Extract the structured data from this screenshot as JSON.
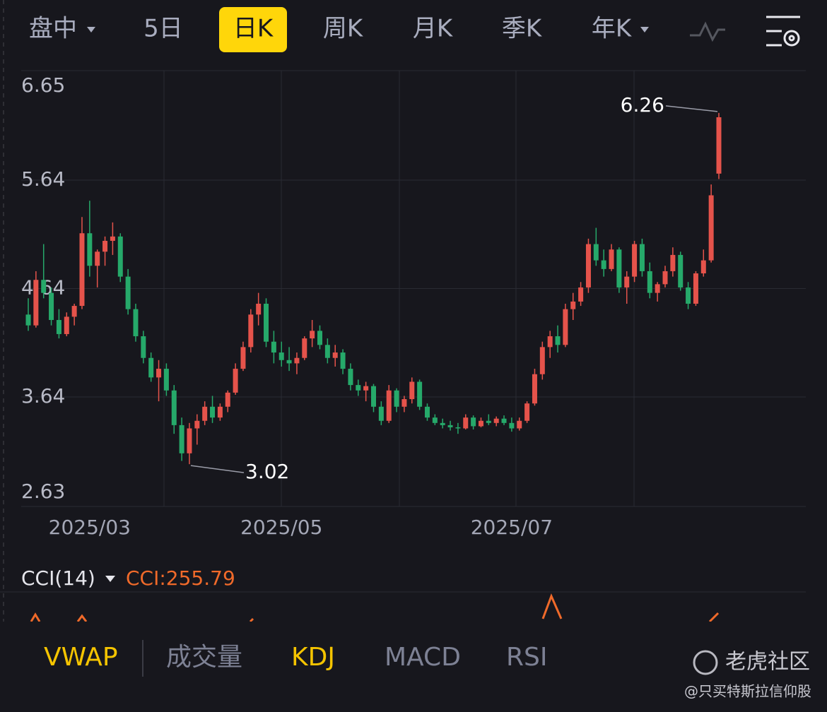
{
  "toolbar": {
    "tabs": [
      "盘中",
      "5日",
      "日K",
      "周K",
      "月K",
      "季K",
      "年K"
    ],
    "selected": 2
  },
  "chart_data": {
    "type": "candlestick",
    "categories": [
      null,
      null,
      null,
      null,
      null,
      null,
      null,
      null,
      "2025/03",
      null,
      null,
      null,
      null,
      null,
      null,
      null,
      null,
      null,
      null,
      null,
      null,
      null,
      null,
      null,
      null,
      null,
      null,
      null,
      null,
      null,
      null,
      null,
      null,
      "2025/05",
      null,
      null,
      null,
      null,
      null,
      null,
      null,
      null,
      null,
      null,
      null,
      null,
      null,
      null,
      null,
      null,
      null,
      null,
      null,
      null,
      null,
      null,
      null,
      null,
      null,
      null,
      null,
      null,
      null,
      "2025/07",
      null,
      null,
      null,
      null,
      null,
      null,
      null,
      null,
      null,
      null,
      null,
      null,
      null,
      null,
      null,
      null,
      null,
      null,
      null,
      null,
      null,
      null,
      null,
      null,
      null,
      null,
      null
    ],
    "open": [
      4.4,
      4.3,
      4.72,
      4.6,
      4.35,
      4.22,
      4.38,
      4.48,
      5.15,
      4.85,
      4.98,
      5.08,
      5.12,
      4.75,
      4.45,
      4.2,
      4.0,
      3.82,
      3.9,
      3.7,
      3.38,
      3.12,
      3.35,
      3.42,
      3.55,
      3.45,
      3.55,
      3.68,
      3.9,
      4.1,
      4.4,
      4.5,
      4.15,
      4.05,
      3.98,
      3.95,
      4.0,
      4.18,
      4.25,
      4.12,
      4.0,
      4.05,
      3.9,
      3.75,
      3.7,
      3.74,
      3.55,
      3.42,
      3.7,
      3.55,
      3.62,
      3.78,
      3.55,
      3.45,
      3.4,
      3.38,
      3.36,
      3.35,
      3.45,
      3.37,
      3.42,
      3.4,
      3.44,
      3.4,
      3.35,
      3.42,
      3.58,
      3.85,
      4.1,
      4.2,
      4.12,
      4.45,
      4.52,
      4.65,
      5.05,
      4.9,
      4.82,
      5.0,
      4.65,
      4.75,
      5.05,
      4.8,
      4.6,
      4.68,
      4.8,
      4.95,
      4.65,
      4.5,
      4.78,
      4.9,
      5.7
    ],
    "high": [
      4.55,
      4.8,
      5.05,
      4.65,
      4.45,
      4.42,
      4.5,
      5.3,
      5.45,
      5.0,
      5.12,
      5.25,
      5.15,
      4.82,
      4.5,
      4.25,
      4.05,
      3.98,
      3.95,
      3.75,
      3.45,
      3.4,
      3.48,
      3.6,
      3.65,
      3.58,
      3.7,
      3.95,
      4.15,
      4.45,
      4.6,
      4.55,
      4.25,
      4.15,
      4.1,
      4.05,
      4.2,
      4.35,
      4.3,
      4.18,
      4.12,
      4.08,
      3.95,
      3.8,
      3.78,
      3.76,
      3.6,
      3.75,
      3.72,
      3.65,
      3.82,
      3.8,
      3.58,
      3.48,
      3.44,
      3.42,
      3.4,
      3.48,
      3.47,
      3.45,
      3.48,
      3.46,
      3.47,
      3.45,
      3.45,
      3.6,
      3.9,
      4.15,
      4.25,
      4.3,
      4.5,
      4.6,
      4.7,
      5.1,
      5.2,
      5.0,
      5.05,
      5.02,
      4.8,
      5.08,
      5.1,
      4.88,
      4.7,
      4.85,
      5.02,
      4.98,
      4.7,
      4.8,
      5.0,
      5.6,
      6.26
    ],
    "low": [
      4.25,
      4.28,
      4.55,
      4.3,
      4.18,
      4.2,
      4.3,
      4.45,
      4.75,
      4.65,
      4.85,
      4.95,
      4.7,
      4.4,
      4.15,
      3.95,
      3.78,
      3.6,
      3.65,
      3.3,
      3.05,
      3.02,
      3.2,
      3.38,
      3.4,
      3.42,
      3.5,
      3.66,
      3.88,
      4.05,
      4.3,
      4.1,
      3.95,
      3.92,
      3.88,
      3.85,
      3.98,
      4.1,
      4.08,
      3.95,
      3.92,
      3.85,
      3.7,
      3.65,
      3.6,
      3.5,
      3.38,
      3.4,
      3.5,
      3.5,
      3.58,
      3.52,
      3.42,
      3.38,
      3.35,
      3.33,
      3.3,
      3.34,
      3.34,
      3.36,
      3.38,
      3.37,
      3.38,
      3.32,
      3.33,
      3.4,
      3.56,
      3.8,
      4.0,
      4.05,
      4.1,
      4.35,
      4.48,
      4.6,
      4.85,
      4.75,
      4.8,
      4.6,
      4.5,
      4.7,
      4.75,
      4.55,
      4.52,
      4.65,
      4.75,
      4.62,
      4.45,
      4.48,
      4.75,
      4.88,
      5.65
    ],
    "close": [
      4.3,
      4.72,
      4.6,
      4.35,
      4.22,
      4.38,
      4.48,
      5.15,
      4.85,
      4.98,
      5.08,
      5.12,
      4.75,
      4.45,
      4.2,
      4.0,
      3.82,
      3.9,
      3.7,
      3.38,
      3.12,
      3.35,
      3.42,
      3.55,
      3.45,
      3.55,
      3.68,
      3.9,
      4.1,
      4.4,
      4.5,
      4.15,
      4.05,
      3.98,
      3.95,
      4.0,
      4.18,
      4.25,
      4.12,
      4.0,
      4.05,
      3.9,
      3.75,
      3.7,
      3.74,
      3.55,
      3.42,
      3.7,
      3.55,
      3.62,
      3.78,
      3.55,
      3.45,
      3.4,
      3.38,
      3.36,
      3.35,
      3.45,
      3.37,
      3.42,
      3.4,
      3.44,
      3.4,
      3.35,
      3.42,
      3.58,
      3.85,
      4.1,
      4.2,
      4.12,
      4.45,
      4.52,
      4.65,
      5.05,
      4.9,
      4.82,
      5.0,
      4.65,
      4.75,
      5.05,
      4.8,
      4.6,
      4.68,
      4.8,
      4.95,
      4.65,
      4.5,
      4.78,
      4.9,
      5.5,
      6.22
    ],
    "up_color": "#e5534b",
    "down_color": "#26a96a",
    "ylim": [
      2.63,
      6.65
    ],
    "yticks": [
      2.63,
      3.64,
      4.64,
      5.64,
      6.65
    ],
    "grid": true,
    "max_index": 90,
    "min_index": 21
  },
  "indicator": {
    "name": "CCI(14)",
    "value_text": "CCI:255.79"
  },
  "indicator_tabs": [
    "VWAP",
    "成交量",
    "KDJ",
    "MACD",
    "RSI"
  ],
  "watermark": {
    "brand": "老虎社区",
    "author": "@只买特斯拉信仰股"
  }
}
